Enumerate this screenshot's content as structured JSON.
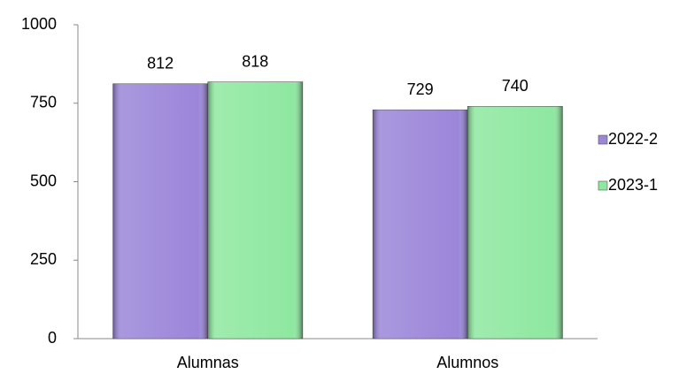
{
  "chart_data": {
    "type": "bar",
    "categories": [
      "Alumnas",
      "Alumnos"
    ],
    "series": [
      {
        "name": "2022-2",
        "color": "#9b86d9",
        "values": [
          812,
          729
        ]
      },
      {
        "name": "2023-1",
        "color": "#8ee8a0",
        "values": [
          818,
          740
        ]
      }
    ],
    "ylim": [
      0,
      1000
    ],
    "yticks": [
      0,
      250,
      500,
      750,
      1000
    ],
    "grid": false,
    "legend": "right"
  }
}
